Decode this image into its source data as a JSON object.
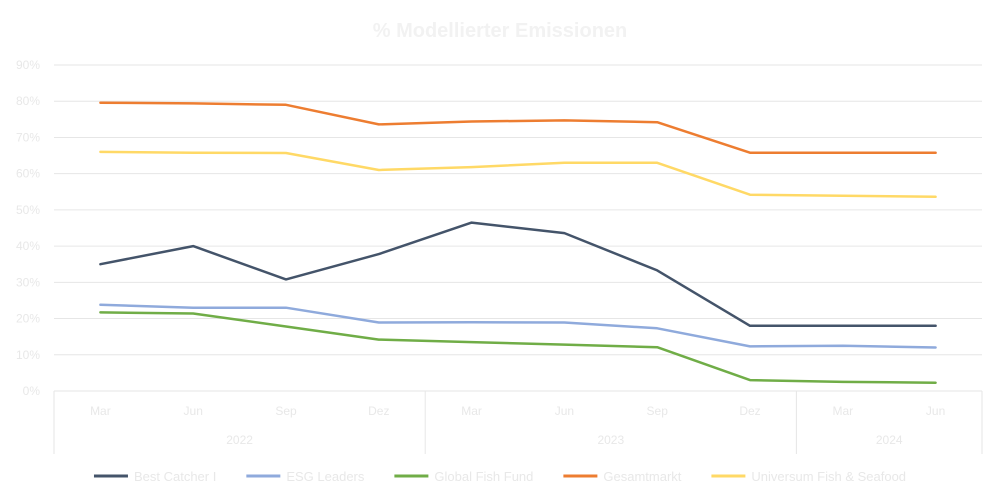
{
  "chart_data": {
    "type": "line",
    "title": "% Modellierter Emissionen",
    "x": [
      "Mar",
      "Jun",
      "Sep",
      "Dez",
      "Mar",
      "Jun",
      "Sep",
      "Dez",
      "Mar",
      "Jun"
    ],
    "year_groups": [
      {
        "label": "2022",
        "count": 4
      },
      {
        "label": "2023",
        "count": 4
      },
      {
        "label": "2024",
        "count": 2
      }
    ],
    "y_ticks": [
      "0%",
      "10%",
      "20%",
      "30%",
      "40%",
      "50%",
      "60%",
      "70%",
      "80%",
      "90%"
    ],
    "ylim": [
      0,
      90
    ],
    "grid": true,
    "legend_position": "bottom",
    "series": [
      {
        "name": "Best Catcher I",
        "color": "#44546a",
        "values": [
          35,
          40,
          30.8,
          37.8,
          46.5,
          43.6,
          33.3,
          18,
          18,
          18
        ]
      },
      {
        "name": "ESG Leaders",
        "color": "#8faadc",
        "values": [
          23.8,
          23,
          23,
          18.9,
          19,
          18.9,
          17.3,
          12.3,
          12.5,
          12
        ]
      },
      {
        "name": "Global Fish Fund",
        "color": "#70ad47",
        "values": [
          21.7,
          21.4,
          17.8,
          14.2,
          13.5,
          12.8,
          12.1,
          3,
          2.5,
          2.3
        ]
      },
      {
        "name": "Gesamtmarkt",
        "color": "#ed7d31",
        "values": [
          79.6,
          79.4,
          79,
          73.6,
          74.4,
          74.7,
          74.2,
          65.8,
          65.8,
          65.8
        ]
      },
      {
        "name": "Universum Fish & Seafood",
        "color": "#ffd966",
        "values": [
          66,
          65.8,
          65.7,
          61,
          61.8,
          63,
          63,
          54.2,
          53.9,
          53.6
        ]
      }
    ]
  }
}
